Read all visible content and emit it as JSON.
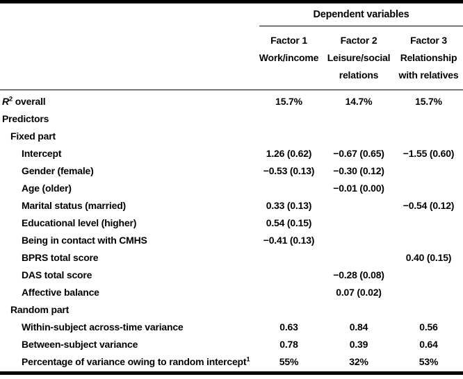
{
  "table": {
    "header": {
      "group_label": "Dependent variables",
      "columns": [
        {
          "line1": "Factor 1",
          "line2": "Work/income",
          "line3": ""
        },
        {
          "line1": "Factor 2",
          "line2": "Leisure/social",
          "line3": "relations"
        },
        {
          "line1": "Factor 3",
          "line2": "Relationship",
          "line3": "with relatives"
        }
      ]
    },
    "rows": [
      {
        "pre_italic": "R",
        "pre_sup": "2",
        "label": " overall",
        "indent": 0,
        "values": [
          "15.7%",
          "14.7%",
          "15.7%"
        ]
      },
      {
        "label": "Predictors",
        "indent": 0,
        "values": [
          "",
          "",
          ""
        ]
      },
      {
        "label": "Fixed part",
        "indent": 1,
        "values": [
          "",
          "",
          ""
        ]
      },
      {
        "label": "Intercept",
        "indent": 2,
        "values": [
          "1.26 (0.62)",
          "−0.67 (0.65)",
          "−1.55 (0.60)"
        ]
      },
      {
        "label": "Gender (female)",
        "indent": 2,
        "values": [
          "−0.53 (0.13)",
          "−0.30 (0.12)",
          ""
        ]
      },
      {
        "label": "Age (older)",
        "indent": 2,
        "values": [
          "",
          "−0.01 (0.00)",
          ""
        ]
      },
      {
        "label": "Marital status (married)",
        "indent": 2,
        "values": [
          "0.33 (0.13)",
          "",
          "−0.54 (0.12)"
        ]
      },
      {
        "label": "Educational level (higher)",
        "indent": 2,
        "values": [
          "0.54 (0.15)",
          "",
          ""
        ]
      },
      {
        "label": "Being in contact with CMHS",
        "indent": 2,
        "values": [
          "−0.41 (0.13)",
          "",
          ""
        ]
      },
      {
        "label": "BPRS total score",
        "indent": 2,
        "values": [
          "",
          "",
          "0.40 (0.15)"
        ]
      },
      {
        "label": "DAS total score",
        "indent": 2,
        "values": [
          "",
          "−0.28 (0.08)",
          ""
        ]
      },
      {
        "label": "Affective balance",
        "indent": 2,
        "values": [
          "",
          "0.07 (0.02)",
          ""
        ]
      },
      {
        "label": "Random part",
        "indent": 1,
        "values": [
          "",
          "",
          ""
        ]
      },
      {
        "label": "Within-subject across-time variance",
        "indent": 2,
        "values": [
          "0.63",
          "0.84",
          "0.56"
        ]
      },
      {
        "label": "Between-subject variance",
        "indent": 2,
        "values": [
          "0.78",
          "0.39",
          "0.64"
        ]
      },
      {
        "label": "Percentage of variance owing to random intercept",
        "sup": "1",
        "indent": 2,
        "values": [
          "55%",
          "32%",
          "53%"
        ]
      }
    ]
  }
}
